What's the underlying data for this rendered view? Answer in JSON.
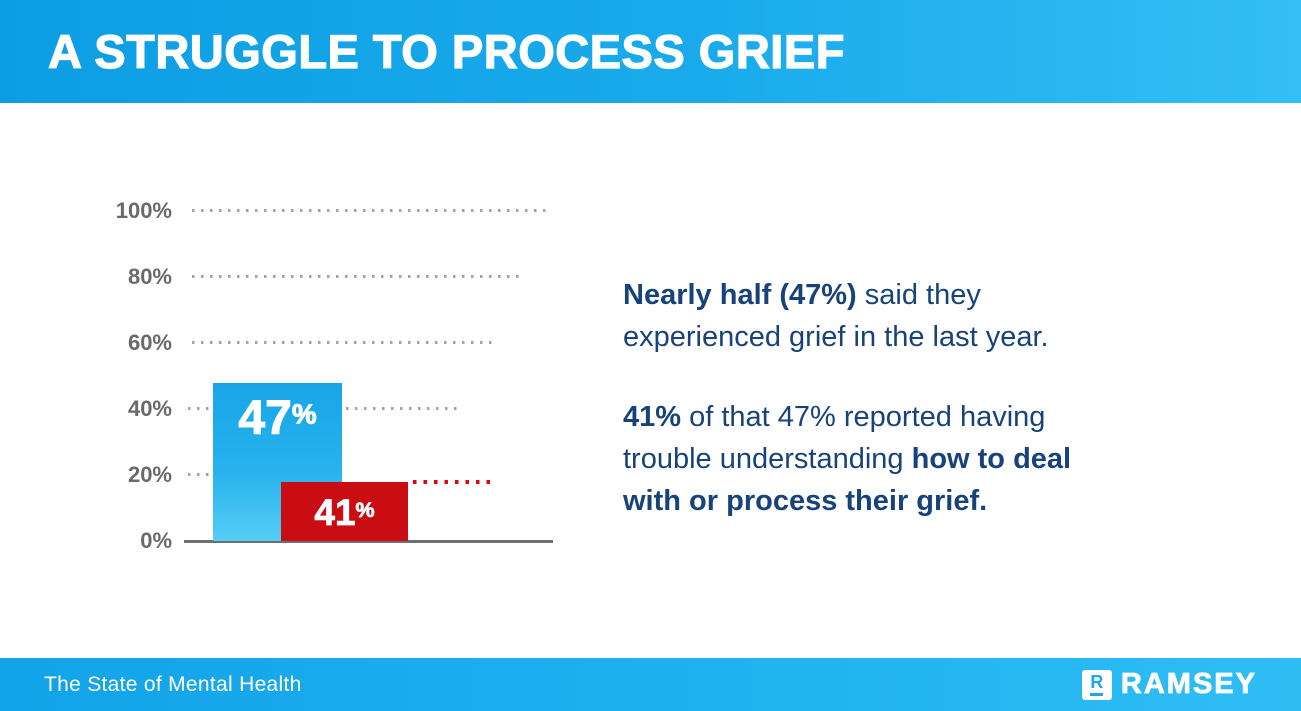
{
  "header": {
    "title": "A STRUGGLE TO PROCESS GRIEF"
  },
  "chart_data": {
    "type": "bar",
    "title": "A STRUGGLE TO PROCESS GRIEF",
    "categories": [
      "Said they experienced grief in the last year",
      "Of that 47%, reported trouble understanding how to deal with or process their grief"
    ],
    "values": [
      47,
      41
    ],
    "bar_labels": [
      "47%",
      "41%"
    ],
    "bar_colors": [
      "#1ca8e9",
      "#c90d12"
    ],
    "drawn_heights_pct": [
      47,
      19
    ],
    "ylim": [
      0,
      100
    ],
    "yticks": [
      "0%",
      "20%",
      "40%",
      "60%",
      "80%",
      "100%"
    ],
    "grid": "horizontal dotted gray gridlines; red dotted leader line at red bar top",
    "legend": "none",
    "xlabel": "",
    "ylabel": ""
  },
  "chart": {
    "y_labels": [
      "100%",
      "80%",
      "60%",
      "40%",
      "20%",
      "0%"
    ],
    "bars": [
      {
        "value": "47",
        "suffix": "%"
      },
      {
        "value": "41",
        "suffix": "%"
      }
    ]
  },
  "text_block": {
    "p1_line1_bold": "Nearly half (47%)",
    "p1_line1_regular": " said they",
    "p1_line2": "experienced grief in the last year.",
    "p2_line1_bold": "41%",
    "p2_line1_regular": " of that 47% reported having",
    "p2_line2_regular": "trouble understanding ",
    "p2_line2_bold": "how to deal",
    "p2_line3_bold": "with or process their grief."
  },
  "footer": {
    "label": "The State of Mental Health",
    "brand": "RAMSEY",
    "logo_letter": "R"
  },
  "colors": {
    "header_blue_left": "#0d9de3",
    "header_blue_right": "#33bff4",
    "bar_blue": "#1ca8e9",
    "bar_red": "#c90d12",
    "red_dots": "#e60010",
    "navy_text": "#17437a",
    "axis_gray": "#6d6e71",
    "label_gray": "#696a6d"
  }
}
